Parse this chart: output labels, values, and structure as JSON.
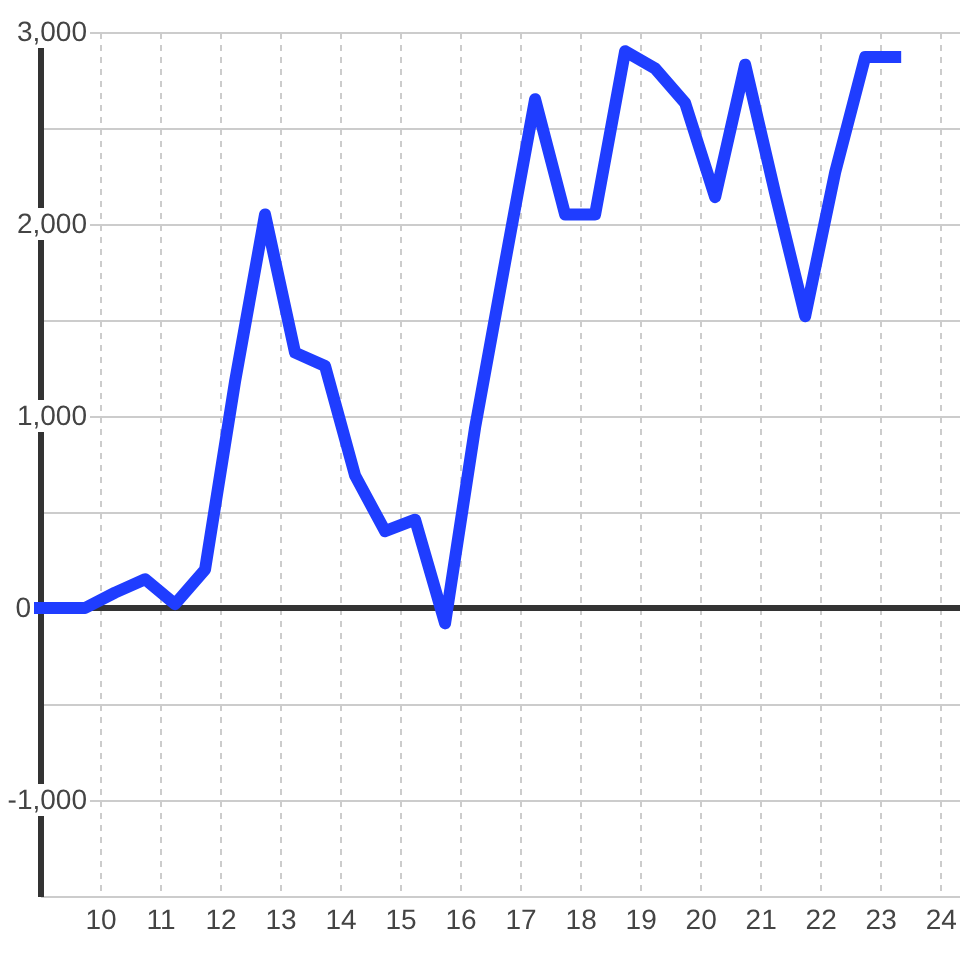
{
  "chart_data": {
    "type": "line",
    "x": [
      9.0,
      9.25,
      9.75,
      10.25,
      10.75,
      11.25,
      11.75,
      12.25,
      12.75,
      13.25,
      13.75,
      14.25,
      14.75,
      15.25,
      15.75,
      16.25,
      16.75,
      17.25,
      17.75,
      18.25,
      18.75,
      19.25,
      19.75,
      20.25,
      20.75,
      21.25,
      21.75,
      22.25,
      22.75,
      23.25
    ],
    "series": [
      {
        "color": "#1f3dff",
        "values": [
          0,
          0,
          0,
          80,
          150,
          20,
          200,
          1180,
          2050,
          1330,
          1260,
          690,
          400,
          460,
          -80,
          940,
          1800,
          2650,
          2050,
          2050,
          2900,
          2810,
          2630,
          2140,
          2830,
          2160,
          1520,
          2270,
          2870,
          2870
        ]
      }
    ],
    "xlim": [
      9,
      24.33
    ],
    "xticks": [
      10,
      11,
      12,
      13,
      14,
      15,
      16,
      17,
      18,
      19,
      20,
      21,
      22,
      23,
      24
    ],
    "ylim": [
      -1500,
      3000
    ],
    "yticks": [
      {
        "value": -1500,
        "label": null
      },
      {
        "value": -1000,
        "label": "-1,000"
      },
      {
        "value": -500,
        "label": null
      },
      0,
      {
        "value": 500,
        "label": null
      },
      {
        "value": 1000,
        "label": "1,000"
      },
      {
        "value": 1500,
        "label": null
      },
      {
        "value": 2000,
        "label": "2,000"
      },
      {
        "value": 2500,
        "label": null
      },
      {
        "value": 3000,
        "label": "3,000"
      }
    ],
    "grid": true,
    "ref_lines": [
      {
        "axis": "y",
        "value": 0,
        "color": "#333333"
      }
    ],
    "marker": "none",
    "line_style": "solid"
  }
}
